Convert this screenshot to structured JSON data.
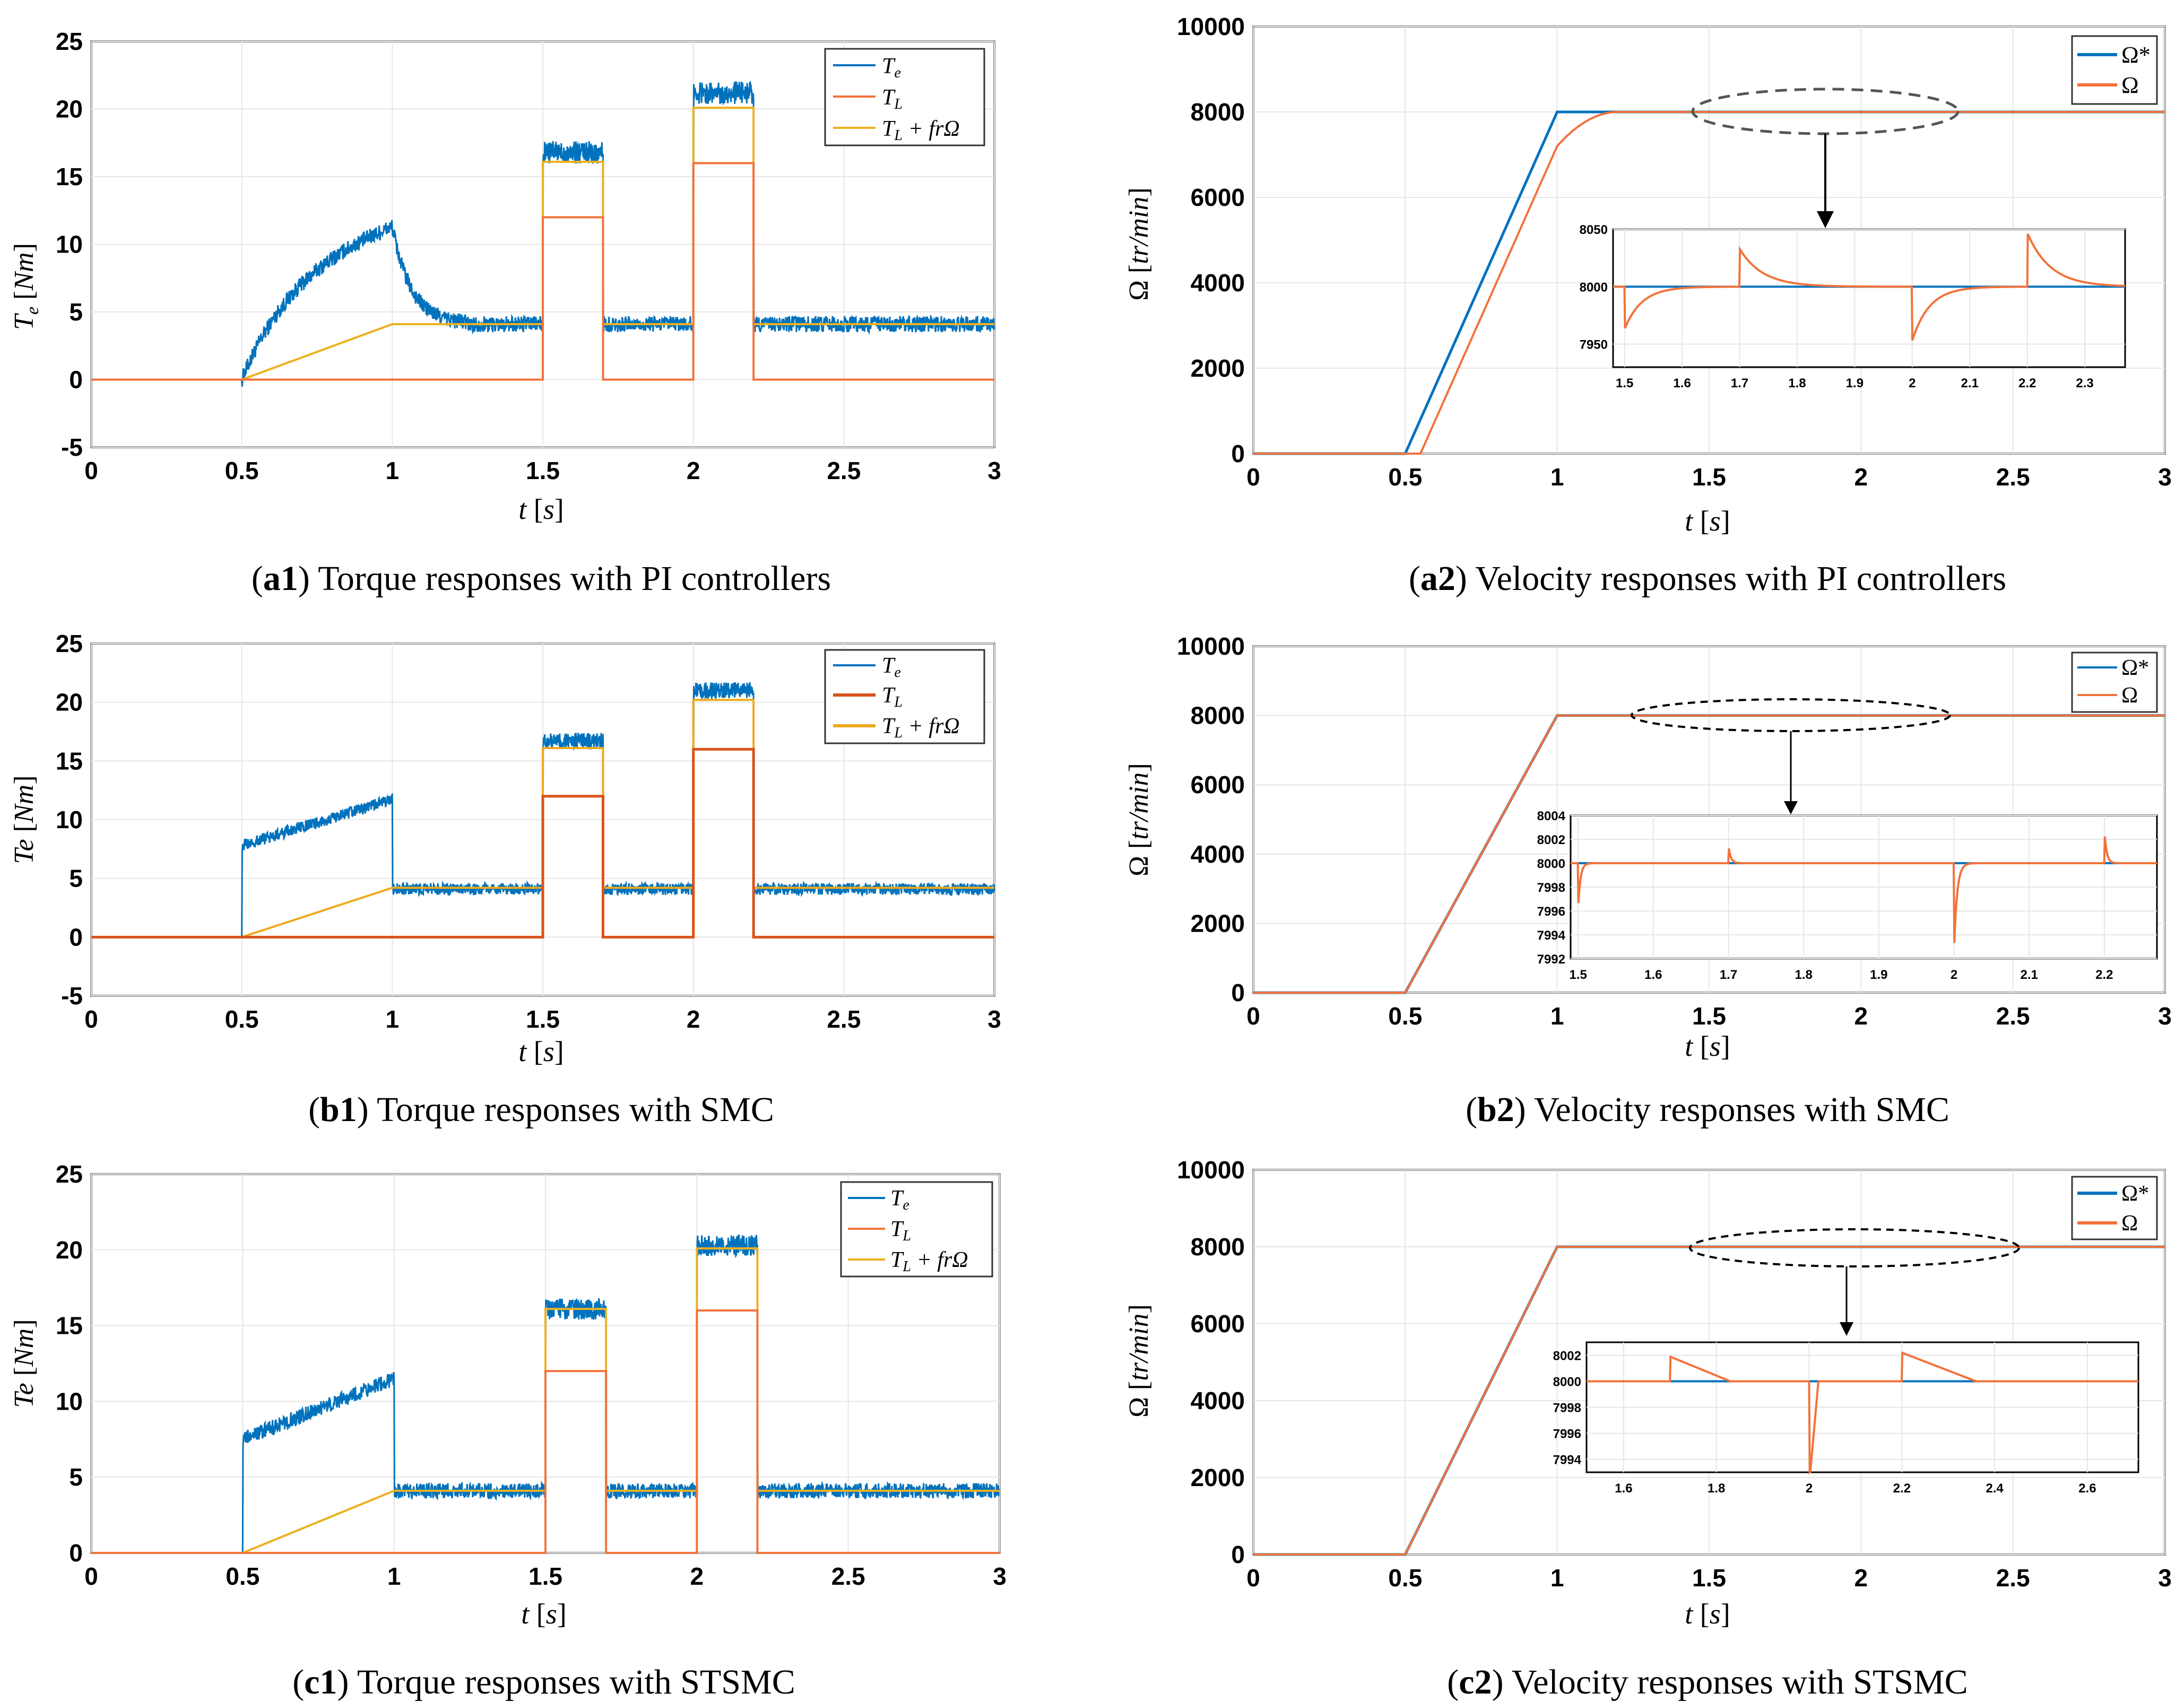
{
  "colors": {
    "blue": "#0072BD",
    "orange": "#F2723B",
    "red": "#D95319",
    "yellow": "#EDB120",
    "gold": "#EFA91A",
    "black": "#000000",
    "grid": "#e6e6e6",
    "ellipse": "#555555"
  },
  "chart_data": [
    {
      "id": "a1",
      "type": "line",
      "title": "Torque responses with PI controllers",
      "caption_tag": "a1",
      "xlabel": "t [s]",
      "ylabel": "T_e [Nm]",
      "xlim": [
        0,
        3
      ],
      "ylim": [
        -5,
        25
      ],
      "xticks": [
        "0",
        "0.5",
        "1",
        "1.5",
        "2",
        "2.5",
        "3"
      ],
      "yticks": [
        "-5",
        "0",
        "5",
        "10",
        "15",
        "20",
        "25"
      ],
      "grid": true,
      "legend_position": "top-right",
      "series": [
        {
          "name": "T_e",
          "legend_label": "T_e",
          "legend_main": "T",
          "legend_sub": "e",
          "color": "blue",
          "noise": 0.6
        },
        {
          "name": "T_L",
          "legend_label": "T_L",
          "legend_main": "T",
          "legend_sub": "L",
          "color": "orange"
        },
        {
          "name": "T_L + frΩ",
          "legend_label": "T_L + frΩ",
          "legend_main": "T",
          "legend_sub": "L",
          "legend_tail": " + frΩ",
          "color": "yellow"
        }
      ],
      "te_model": {
        "start": 0.5,
        "ramp_peak": 11.3,
        "ramp_shape": "concave",
        "decay_end": 1.25,
        "steady": 4.1,
        "step1": {
          "from": 1.5,
          "to": 1.7,
          "level": 16.8
        },
        "step2": {
          "from": 2.0,
          "to": 2.2,
          "level": 21.2
        }
      },
      "load_steps": [
        {
          "from": 1.5,
          "to": 1.7,
          "value": 12
        },
        {
          "from": 2.0,
          "to": 2.2,
          "value": 16
        }
      ],
      "friction_line": {
        "start": 0.5,
        "ramp_end": 1.0,
        "base": 4.1,
        "step_values": [
          16.1,
          20.1
        ]
      }
    },
    {
      "id": "b1",
      "type": "line",
      "title": "Torque responses with SMC",
      "caption_tag": "b1",
      "xlabel": "t [s]",
      "ylabel": "Te [Nm]",
      "xlim": [
        0,
        3
      ],
      "ylim": [
        -5,
        25
      ],
      "xticks": [
        "0",
        "0.5",
        "1",
        "1.5",
        "2",
        "2.5",
        "3"
      ],
      "yticks": [
        "-5",
        "0",
        "5",
        "10",
        "15",
        "20",
        "25"
      ],
      "grid": true,
      "legend_position": "top-right",
      "series": [
        {
          "name": "T_e",
          "legend_label": "T_e",
          "legend_main": "T",
          "legend_sub": "e",
          "color": "blue",
          "noise": 0.5
        },
        {
          "name": "T_L",
          "legend_label": "T_L",
          "legend_main": "T",
          "legend_sub": "L",
          "color": "red"
        },
        {
          "name": "T_L + frΩ",
          "legend_label": "T_L + frΩ",
          "legend_main": "T",
          "legend_sub": "L",
          "legend_tail": " + frΩ",
          "color": "gold"
        }
      ],
      "te_model": {
        "start": 0.5,
        "ramp_start": 7.8,
        "ramp_peak": 11.7,
        "ramp_shape": "linear",
        "steady": 4.1,
        "step1": {
          "from": 1.5,
          "to": 1.7,
          "level": 16.7
        },
        "step2": {
          "from": 2.0,
          "to": 2.2,
          "level": 21.0
        }
      },
      "load_steps": [
        {
          "from": 1.5,
          "to": 1.7,
          "value": 12
        },
        {
          "from": 2.0,
          "to": 2.2,
          "value": 16
        }
      ],
      "friction_line": {
        "start": 0.5,
        "ramp_end": 1.0,
        "base": 4.2,
        "step_values": [
          16.1,
          20.2
        ]
      }
    },
    {
      "id": "c1",
      "type": "line",
      "title": "Torque responses with STSMC",
      "caption_tag": "c1",
      "xlabel": "t [s]",
      "ylabel": "Te [Nm]",
      "xlim": [
        0,
        3
      ],
      "ylim": [
        0,
        25
      ],
      "xticks": [
        "0",
        "0.5",
        "1",
        "1.5",
        "2",
        "2.5",
        "3"
      ],
      "yticks": [
        "0",
        "5",
        "10",
        "15",
        "20",
        "25"
      ],
      "grid": true,
      "legend_position": "top-right",
      "series": [
        {
          "name": "T_e",
          "legend_label": "T_e",
          "legend_main": "T",
          "legend_sub": "e",
          "color": "blue",
          "noise": 0.5
        },
        {
          "name": "T_L",
          "legend_label": "T_L",
          "legend_main": "T",
          "legend_sub": "L",
          "color": "orange"
        },
        {
          "name": "T_L + frΩ",
          "legend_label": "T_L + frΩ",
          "legend_main": "T",
          "legend_sub": "L",
          "legend_tail": " + frΩ",
          "color": "yellow"
        }
      ],
      "te_model": {
        "start": 0.5,
        "ramp_start": 7.5,
        "ramp_peak": 11.5,
        "ramp_shape": "linear",
        "steady": 4.1,
        "step1": {
          "from": 1.5,
          "to": 1.7,
          "level": 16.1
        },
        "step2": {
          "from": 2.0,
          "to": 2.2,
          "level": 20.3
        }
      },
      "load_steps": [
        {
          "from": 1.5,
          "to": 1.7,
          "value": 12
        },
        {
          "from": 2.0,
          "to": 2.2,
          "value": 16
        }
      ],
      "friction_line": {
        "start": 0.5,
        "ramp_end": 1.0,
        "base": 4.1,
        "step_values": [
          16.1,
          20.1
        ]
      }
    },
    {
      "id": "a2",
      "type": "line",
      "title": "Velocity responses with PI controllers",
      "caption_tag": "a2",
      "xlabel": "t [s]",
      "ylabel": "Ω [tr/min]",
      "xlim": [
        0,
        3
      ],
      "ylim": [
        0,
        10000
      ],
      "xticks": [
        "0",
        "0.5",
        "1",
        "1.5",
        "2",
        "2.5",
        "3"
      ],
      "yticks": [
        "0",
        "2000",
        "4000",
        "6000",
        "8000",
        "10000"
      ],
      "grid": true,
      "legend_position": "top-right",
      "series": [
        {
          "name": "Ω*",
          "legend_label": "Ω*",
          "color": "blue"
        },
        {
          "name": "Ω",
          "legend_label": "Ω",
          "color": "orange"
        }
      ],
      "reference": {
        "start": 0.5,
        "ramp_end": 1.0,
        "value": 8000
      },
      "response_lag": 0.05,
      "inset": {
        "xlim": [
          1.48,
          2.37
        ],
        "ylim": [
          7930,
          8050
        ],
        "xticks": [
          "1.5",
          "1.6",
          "1.7",
          "1.8",
          "1.9",
          "2",
          "2.1",
          "2.2",
          "2.3"
        ],
        "yticks": [
          "7950",
          "8000",
          "8050"
        ],
        "events": [
          {
            "t": 1.5,
            "amp": -37,
            "tau": 0.03
          },
          {
            "t": 1.7,
            "amp": 33,
            "tau": 0.04
          },
          {
            "t": 2.0,
            "amp": -47,
            "tau": 0.03
          },
          {
            "t": 2.2,
            "amp": 47,
            "tau": 0.04
          }
        ]
      }
    },
    {
      "id": "b2",
      "type": "line",
      "title": "Velocity responses with SMC",
      "caption_tag": "b2",
      "xlabel": "t [s]",
      "ylabel": "Ω [tr/min]",
      "xlim": [
        0,
        3
      ],
      "ylim": [
        0,
        10000
      ],
      "xticks": [
        "0",
        "0.5",
        "1",
        "1.5",
        "2",
        "2.5",
        "3"
      ],
      "yticks": [
        "0",
        "2000",
        "4000",
        "6000",
        "8000",
        "10000"
      ],
      "grid": true,
      "legend_position": "top-right",
      "series": [
        {
          "name": "Ω*",
          "legend_label": "Ω*",
          "color": "blue"
        },
        {
          "name": "Ω",
          "legend_label": "Ω",
          "color": "orange"
        }
      ],
      "reference": {
        "start": 0.5,
        "ramp_end": 1.0,
        "value": 8000
      },
      "response_lag": 0.0,
      "inset": {
        "xlim": [
          1.49,
          2.27
        ],
        "ylim": [
          7992,
          8004
        ],
        "xticks": [
          "1.5",
          "1.6",
          "1.7",
          "1.8",
          "1.9",
          "2",
          "2.1",
          "2.2"
        ],
        "yticks": [
          "7992",
          "7994",
          "7996",
          "7998",
          "8000",
          "8002",
          "8004"
        ],
        "events": [
          {
            "t": 1.5,
            "amp": -3.8,
            "tau": 0.003
          },
          {
            "t": 1.7,
            "amp": 1.5,
            "tau": 0.003
          },
          {
            "t": 2.0,
            "amp": -7.5,
            "tau": 0.004
          },
          {
            "t": 2.2,
            "amp": 2.8,
            "tau": 0.003
          }
        ]
      }
    },
    {
      "id": "c2",
      "type": "line",
      "title": "Velocity responses with STSMC",
      "caption_tag": "c2",
      "xlabel": "t [s]",
      "ylabel": "Ω [tr/min]",
      "xlim": [
        0,
        3
      ],
      "ylim": [
        0,
        10000
      ],
      "xticks": [
        "0",
        "0.5",
        "1",
        "1.5",
        "2",
        "2.5",
        "3"
      ],
      "yticks": [
        "0",
        "2000",
        "4000",
        "6000",
        "8000",
        "10000"
      ],
      "grid": true,
      "legend_position": "top-right",
      "series": [
        {
          "name": "Ω*",
          "legend_label": "Ω*",
          "color": "blue"
        },
        {
          "name": "Ω",
          "legend_label": "Ω",
          "color": "orange"
        }
      ],
      "reference": {
        "start": 0.5,
        "ramp_end": 1.0,
        "value": 8000
      },
      "response_lag": 0.0,
      "inset": {
        "xlim": [
          1.52,
          2.71
        ],
        "ylim": [
          7993,
          8003
        ],
        "xticks": [
          "1.6",
          "1.8",
          "2",
          "2.2",
          "2.4",
          "2.6"
        ],
        "yticks": [
          "7994",
          "7996",
          "7998",
          "8000",
          "8002"
        ],
        "events": [
          {
            "t": 1.7,
            "type": "sawtooth",
            "amp": 1.9,
            "end": 1.83
          },
          {
            "t": 2.0,
            "type": "spike",
            "amp": -8,
            "ramp_end": 2.02
          },
          {
            "t": 2.2,
            "type": "sawtooth",
            "amp": 2.2,
            "end": 2.36
          }
        ]
      }
    }
  ]
}
